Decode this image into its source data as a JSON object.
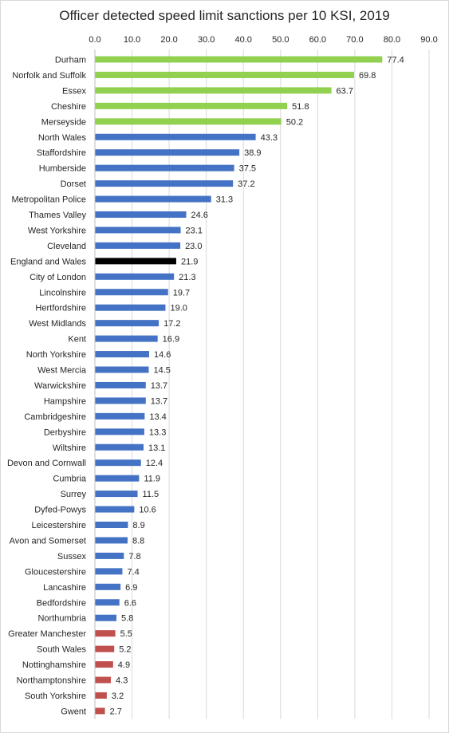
{
  "chart_data": {
    "type": "bar",
    "orientation": "horizontal",
    "title": "Officer detected speed limit sanctions per 10 KSI, 2019",
    "xlim": [
      0,
      90
    ],
    "x_ticks": [
      "0.0",
      "10.0",
      "20.0",
      "30.0",
      "40.0",
      "50.0",
      "60.0",
      "70.0",
      "80.0",
      "90.0"
    ],
    "x_axis_position": "top",
    "grid": "vertical",
    "legend": "none",
    "colors": {
      "top": "#92d050",
      "middle": "#4472c4",
      "national": "#000000",
      "bottom": "#c0504d",
      "grid": "#d9d9d9"
    },
    "categories": [
      "Durham",
      "Norfolk and Suffolk",
      "Essex",
      "Cheshire",
      "Merseyside",
      "North Wales",
      "Staffordshire",
      "Humberside",
      "Dorset",
      "Metropolitan Police",
      "Thames Valley",
      "West Yorkshire",
      "Cleveland",
      "England and Wales",
      "City of London",
      "Lincolnshire",
      "Hertfordshire",
      "West Midlands",
      "Kent",
      "North Yorkshire",
      "West Mercia",
      "Warwickshire",
      "Hampshire",
      "Cambridgeshire",
      "Derbyshire",
      "Wiltshire",
      "Devon and Cornwall",
      "Cumbria",
      "Surrey",
      "Dyfed-Powys",
      "Leicestershire",
      "Avon and Somerset",
      "Sussex",
      "Gloucestershire",
      "Lancashire",
      "Bedfordshire",
      "Northumbria",
      "Greater Manchester",
      "South Wales",
      "Nottinghamshire",
      "Northamptonshire",
      "South Yorkshire",
      "Gwent"
    ],
    "values": [
      77.4,
      69.8,
      63.7,
      51.8,
      50.2,
      43.3,
      38.9,
      37.5,
      37.2,
      31.3,
      24.6,
      23.1,
      23.0,
      21.9,
      21.3,
      19.7,
      19.0,
      17.2,
      16.9,
      14.6,
      14.5,
      13.7,
      13.7,
      13.4,
      13.3,
      13.1,
      12.4,
      11.9,
      11.5,
      10.6,
      8.9,
      8.8,
      7.8,
      7.4,
      6.9,
      6.6,
      5.8,
      5.5,
      5.2,
      4.9,
      4.3,
      3.2,
      2.7
    ],
    "data_labels": [
      "77.4",
      "69.8",
      "63.7",
      "51.8",
      "50.2",
      "43.3",
      "38.9",
      "37.5",
      "37.2",
      "31.3",
      "24.6",
      "23.1",
      "23.0",
      "21.9",
      "21.3",
      "19.7",
      "19.0",
      "17.2",
      "16.9",
      "14.6",
      "14.5",
      "13.7",
      "13.7",
      "13.4",
      "13.3",
      "13.1",
      "12.4",
      "11.9",
      "11.5",
      "10.6",
      "8.9",
      "8.8",
      "7.8",
      "7.4",
      "6.9",
      "6.6",
      "5.8",
      "5.5",
      "5.2",
      "4.9",
      "4.3",
      "3.2",
      "2.7"
    ],
    "bar_groups": [
      "top",
      "top",
      "top",
      "top",
      "top",
      "middle",
      "middle",
      "middle",
      "middle",
      "middle",
      "middle",
      "middle",
      "middle",
      "national",
      "middle",
      "middle",
      "middle",
      "middle",
      "middle",
      "middle",
      "middle",
      "middle",
      "middle",
      "middle",
      "middle",
      "middle",
      "middle",
      "middle",
      "middle",
      "middle",
      "middle",
      "middle",
      "middle",
      "middle",
      "middle",
      "middle",
      "middle",
      "bottom",
      "bottom",
      "bottom",
      "bottom",
      "bottom",
      "bottom"
    ]
  }
}
